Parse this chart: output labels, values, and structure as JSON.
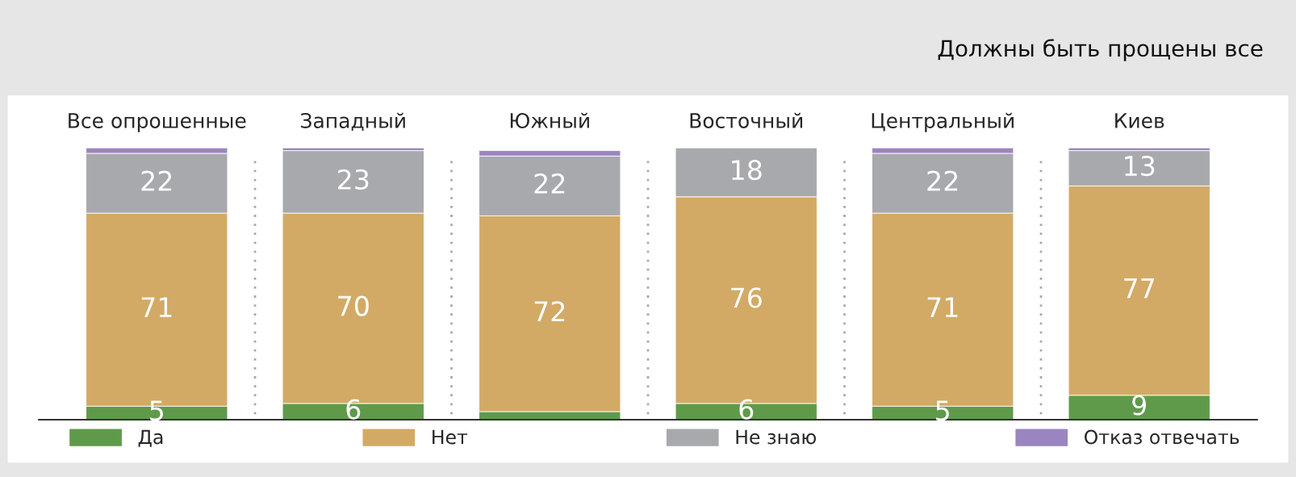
{
  "chart_data": {
    "type": "bar",
    "stacked": true,
    "title": "Должны быть прощены все",
    "categories": [
      "Все опрошенные",
      "Западный",
      "Южный",
      "Восточный",
      "Центральный",
      "Киев"
    ],
    "series": [
      {
        "name": "Да",
        "color": "#5f9a4b",
        "values": [
          5,
          6,
          3,
          6,
          5,
          9
        ],
        "value_labels": [
          "5",
          "6",
          null,
          "6",
          "5",
          "9"
        ]
      },
      {
        "name": "Нет",
        "color": "#d2aa66",
        "values": [
          71,
          70,
          72,
          76,
          71,
          77
        ],
        "value_labels": [
          "71",
          "70",
          "72",
          "76",
          "71",
          "77"
        ]
      },
      {
        "name": "Не знаю",
        "color": "#a8a9ad",
        "values": [
          22,
          23,
          22,
          18,
          22,
          13
        ],
        "value_labels": [
          "22",
          "23",
          "22",
          "18",
          "22",
          "13"
        ]
      },
      {
        "name": "Отказ отвечать",
        "color": "#9b85c0",
        "values": [
          2,
          1,
          2,
          null,
          2,
          1
        ],
        "value_labels": [
          null,
          null,
          null,
          null,
          null,
          null
        ]
      }
    ],
    "legend": "bottom"
  }
}
